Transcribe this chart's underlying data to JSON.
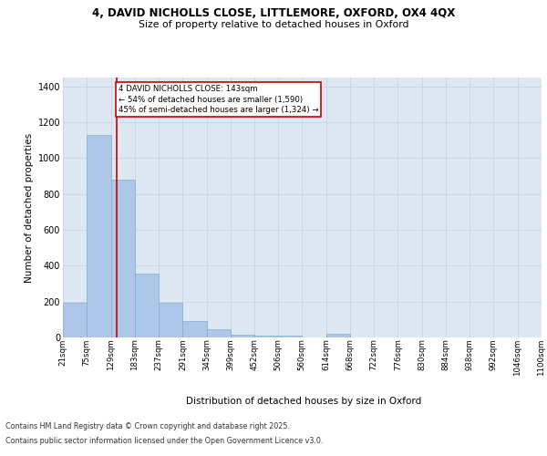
{
  "title_line1": "4, DAVID NICHOLLS CLOSE, LITTLEMORE, OXFORD, OX4 4QX",
  "title_line2": "Size of property relative to detached houses in Oxford",
  "xlabel": "Distribution of detached houses by size in Oxford",
  "ylabel": "Number of detached properties",
  "bar_color": "#aec6e8",
  "bar_edge_color": "#7bafd4",
  "grid_color": "#c8d8ea",
  "background_color": "#dde8f2",
  "vline_color": "#cc0000",
  "vline_x": 143,
  "annotation_text": "4 DAVID NICHOLLS CLOSE: 143sqm\n← 54% of detached houses are smaller (1,590)\n45% of semi-detached houses are larger (1,324) →",
  "annotation_box_color": "#cc0000",
  "footer_line1": "Contains HM Land Registry data © Crown copyright and database right 2025.",
  "footer_line2": "Contains public sector information licensed under the Open Government Licence v3.0.",
  "bin_edges": [
    21,
    75,
    129,
    183,
    237,
    291,
    345,
    399,
    452,
    506,
    560,
    614,
    668,
    722,
    776,
    830,
    884,
    938,
    992,
    1046,
    1100
  ],
  "bar_heights": [
    195,
    1130,
    880,
    355,
    195,
    90,
    45,
    15,
    12,
    12,
    0,
    20,
    0,
    0,
    0,
    0,
    0,
    0,
    0,
    0
  ],
  "ylim": [
    0,
    1450
  ],
  "yticks": [
    0,
    200,
    400,
    600,
    800,
    1000,
    1200,
    1400
  ]
}
